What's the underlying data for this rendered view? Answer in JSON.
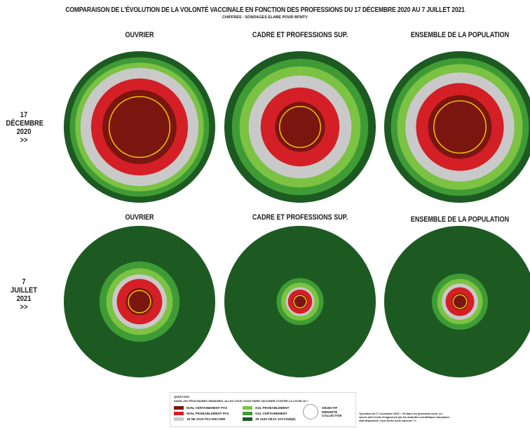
{
  "header": {
    "title": "COMPARAISON DE L'ÉVOLUTION DE LA VOLONTÉ VACCINALE EN FONCTION DES PROFESSIONS DU 17 DÉCEMBRE 2020 AU 7 JUILLET 2021",
    "subtitle": "CHIFFRES : SONDAGES ELABE POUR BFMTV"
  },
  "rows": [
    {
      "lines": [
        "17",
        "DÉCEMBRE",
        "2020",
        ">>"
      ]
    },
    {
      "lines": [
        "7",
        "JUILLET",
        "2021",
        ">>"
      ]
    }
  ],
  "columns": [
    {
      "label": "OUVRIER"
    },
    {
      "label": "CADRE ET PROFESSIONS SUP."
    },
    {
      "label": "ENSEMBLE DE LA POPULATION"
    }
  ],
  "chart_data": {
    "type": "radial-area",
    "category_order": [
      "Non, certainement pas",
      "Non, probablement pas",
      "Je ne sais pas encore",
      "Oui, probablement",
      "Oui, certainement",
      "Je suis déjà vacciné(e)"
    ],
    "colors": {
      "Non, certainement pas": "#7a1510",
      "Non, probablement pas": "#d41f26",
      "Je ne sais pas encore": "#c9c9c9",
      "Oui, probablement": "#7cc243",
      "Oui, certainement": "#3f9c35",
      "Je suis déjà vacciné(e)": "#1d5a22",
      "Objectif immunité collective": "#f2c200"
    },
    "herd_immunity_target_radius_fraction": 0.55,
    "panels": [
      {
        "row": "17 décembre 2020",
        "group": "Ouvrier",
        "rings": [
          0.49,
          0.64,
          0.78,
          0.85,
          0.92,
          1.0
        ]
      },
      {
        "row": "17 décembre 2020",
        "group": "Cadre et professions sup.",
        "rings": [
          0.33,
          0.52,
          0.68,
          0.8,
          0.9,
          1.0
        ]
      },
      {
        "row": "17 décembre 2020",
        "group": "Ensemble de la population",
        "rings": [
          0.42,
          0.58,
          0.72,
          0.83,
          0.91,
          1.0
        ]
      },
      {
        "row": "7 juillet 2021",
        "group": "Ouvrier",
        "rings": [
          0.18,
          0.3,
          0.36,
          0.44,
          0.53,
          1.0
        ]
      },
      {
        "row": "7 juillet 2021",
        "group": "Cadre et professions sup.",
        "rings": [
          0.1,
          0.16,
          0.19,
          0.25,
          0.31,
          1.0
        ]
      },
      {
        "row": "7 juillet 2021",
        "group": "Ensemble de la population",
        "rings": [
          0.11,
          0.19,
          0.24,
          0.3,
          0.37,
          1.0
        ]
      }
    ]
  },
  "legend": {
    "question_title": "QUESTION*",
    "question_text": "DANS LES PROCHAINES SEMAINES, ALLEZ-VOUS VOUS FAIRE VACCINER CONTRE LA COVID 19 ?",
    "items": [
      {
        "label": "NON, CERTAINEMENT PAS",
        "color": "#7a1510"
      },
      {
        "label": "NON, PROBABLEMENT PAS",
        "color": "#d41f26"
      },
      {
        "label": "JE NE SAIS PAS ENCORE",
        "color": "#c9c9c9"
      },
      {
        "label": "OUI, PROBABLEMENT",
        "color": "#7cc243"
      },
      {
        "label": "OUI, CERTAINEMENT",
        "color": "#3f9c35"
      },
      {
        "label": "JE SUIS DÉJÀ VACCINÉ(E)",
        "color": "#1d5a22"
      }
    ],
    "target_lines": [
      "OBJECTIF",
      "IMMUNITÉ",
      "COLLECTIVE"
    ]
  },
  "footnote": "*Question du 17 novembre 2020 : «Si dans les prochains mois, un vaccin anti Covid-19 approuvé par les autorités scientifiques françaises était disponible, vous feriez-vous vacciner ?»"
}
